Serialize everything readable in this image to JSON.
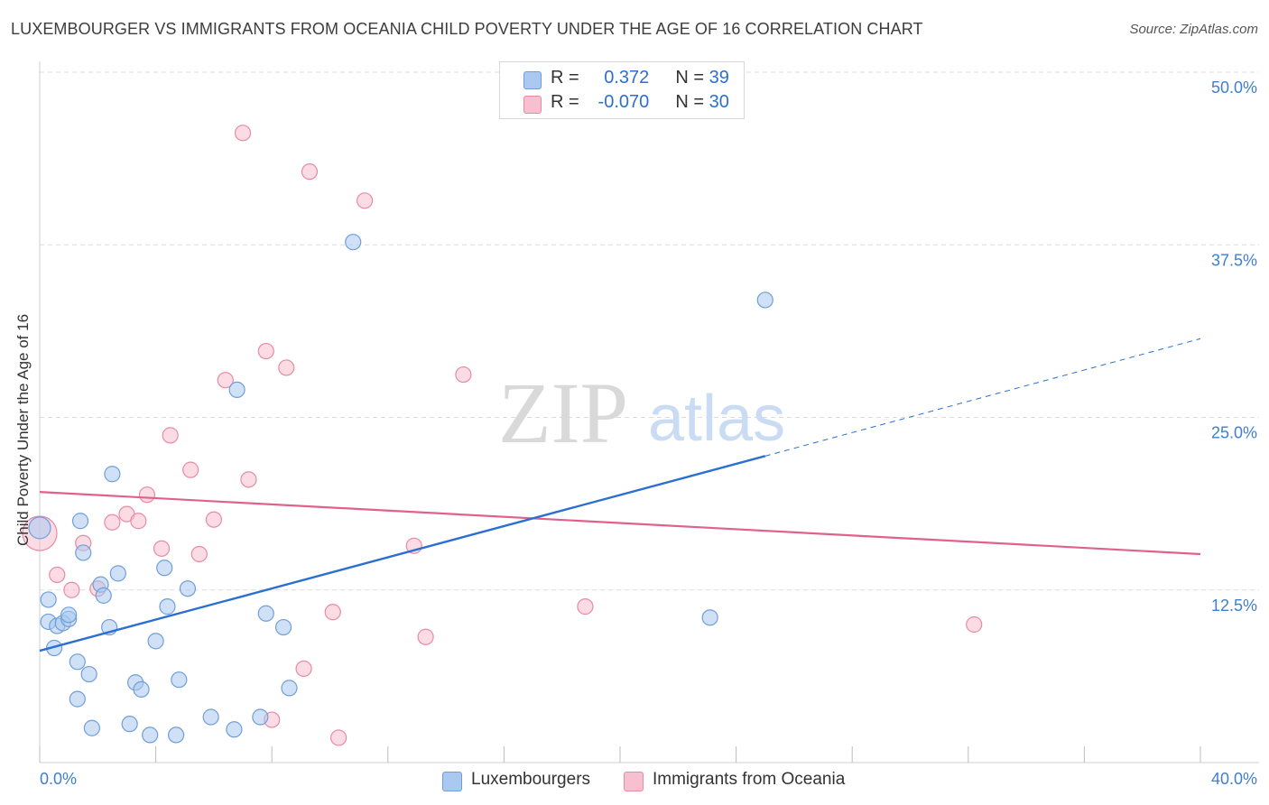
{
  "title": "LUXEMBOURGER VS IMMIGRANTS FROM OCEANIA CHILD POVERTY UNDER THE AGE OF 16 CORRELATION CHART",
  "source": "Source: ZipAtlas.com",
  "watermark": {
    "zip": "ZIP",
    "atlas": "atlas"
  },
  "legend": {
    "rows": [
      {
        "r_label": "R =",
        "r_value": "0.372",
        "n_label": "N =",
        "n_value": "39"
      },
      {
        "r_label": "R =",
        "r_value": "-0.070",
        "n_label": "N =",
        "n_value": "30"
      }
    ]
  },
  "bottom_legend": [
    "Luxembourgers",
    "Immigrants from Oceania"
  ],
  "colors": {
    "blue_fill": "#aac8f0",
    "blue_stroke": "#6f9fd8",
    "blue_line": "#2a6fd1",
    "pink_fill": "#f7c0d0",
    "pink_stroke": "#e88aa6",
    "pink_line": "#e0628c",
    "tick_label": "#3f7fd0",
    "grid": "#dcdcdc"
  },
  "chart_data": {
    "type": "scatter",
    "title": "LUXEMBOURGER VS IMMIGRANTS FROM OCEANIA CHILD POVERTY UNDER THE AGE OF 16 CORRELATION CHART",
    "xlabel": "",
    "ylabel": "Child Poverty Under the Age of 16",
    "xlim": [
      0,
      40
    ],
    "ylim": [
      0,
      50
    ],
    "x_tick_labels": [
      "0.0%",
      "40.0%"
    ],
    "y_ticks": [
      12.5,
      25,
      37.5,
      50
    ],
    "y_tick_labels": [
      "12.5%",
      "25.0%",
      "37.5%",
      "50.0%"
    ],
    "series": [
      {
        "name": "Luxembourgers",
        "color": "#aac8f0",
        "points": [
          [
            0.0,
            17.0
          ],
          [
            0.3,
            11.8
          ],
          [
            0.3,
            10.2
          ],
          [
            0.5,
            8.3
          ],
          [
            0.6,
            9.9
          ],
          [
            0.8,
            10.1
          ],
          [
            1.0,
            10.4
          ],
          [
            1.0,
            10.7
          ],
          [
            1.3,
            4.6
          ],
          [
            1.3,
            7.3
          ],
          [
            1.4,
            17.5
          ],
          [
            1.5,
            15.2
          ],
          [
            1.7,
            6.4
          ],
          [
            1.8,
            2.5
          ],
          [
            2.1,
            12.9
          ],
          [
            2.2,
            12.1
          ],
          [
            2.4,
            9.8
          ],
          [
            2.5,
            20.9
          ],
          [
            2.7,
            13.7
          ],
          [
            3.1,
            2.8
          ],
          [
            3.3,
            5.8
          ],
          [
            3.5,
            5.3
          ],
          [
            3.8,
            2.0
          ],
          [
            4.0,
            8.8
          ],
          [
            4.3,
            14.1
          ],
          [
            4.4,
            11.3
          ],
          [
            4.7,
            2.0
          ],
          [
            4.8,
            6.0
          ],
          [
            5.1,
            12.6
          ],
          [
            5.9,
            3.3
          ],
          [
            6.7,
            2.4
          ],
          [
            6.8,
            27.0
          ],
          [
            7.6,
            3.3
          ],
          [
            7.8,
            10.8
          ],
          [
            8.4,
            9.8
          ],
          [
            8.6,
            5.4
          ],
          [
            10.8,
            37.7
          ],
          [
            23.1,
            10.5
          ],
          [
            25.0,
            33.5
          ]
        ],
        "trend": {
          "x0": 0,
          "y0": 8.1,
          "x1": 25.0,
          "y1": 22.2,
          "dash_to_x": 40,
          "dash_to_y": 30.7
        }
      },
      {
        "name": "Immigrants from Oceania",
        "color": "#f7c0d0",
        "points": [
          [
            0.0,
            16.6
          ],
          [
            0.6,
            13.6
          ],
          [
            1.1,
            12.5
          ],
          [
            1.5,
            15.9
          ],
          [
            2.0,
            12.6
          ],
          [
            2.5,
            17.4
          ],
          [
            3.0,
            18.0
          ],
          [
            3.4,
            17.5
          ],
          [
            3.7,
            19.4
          ],
          [
            4.2,
            15.5
          ],
          [
            4.5,
            23.7
          ],
          [
            5.2,
            21.2
          ],
          [
            5.5,
            15.1
          ],
          [
            6.0,
            17.6
          ],
          [
            6.4,
            27.7
          ],
          [
            7.0,
            45.6
          ],
          [
            7.2,
            20.5
          ],
          [
            7.8,
            29.8
          ],
          [
            8.0,
            3.1
          ],
          [
            8.5,
            28.6
          ],
          [
            9.1,
            6.8
          ],
          [
            9.3,
            42.8
          ],
          [
            10.1,
            10.9
          ],
          [
            10.3,
            1.8
          ],
          [
            11.2,
            40.7
          ],
          [
            12.9,
            15.7
          ],
          [
            13.3,
            9.1
          ],
          [
            14.6,
            28.1
          ],
          [
            18.8,
            11.3
          ],
          [
            32.2,
            10.0
          ]
        ],
        "trend": {
          "x0": 0,
          "y0": 19.6,
          "x1": 40,
          "y1": 15.1
        }
      }
    ]
  }
}
